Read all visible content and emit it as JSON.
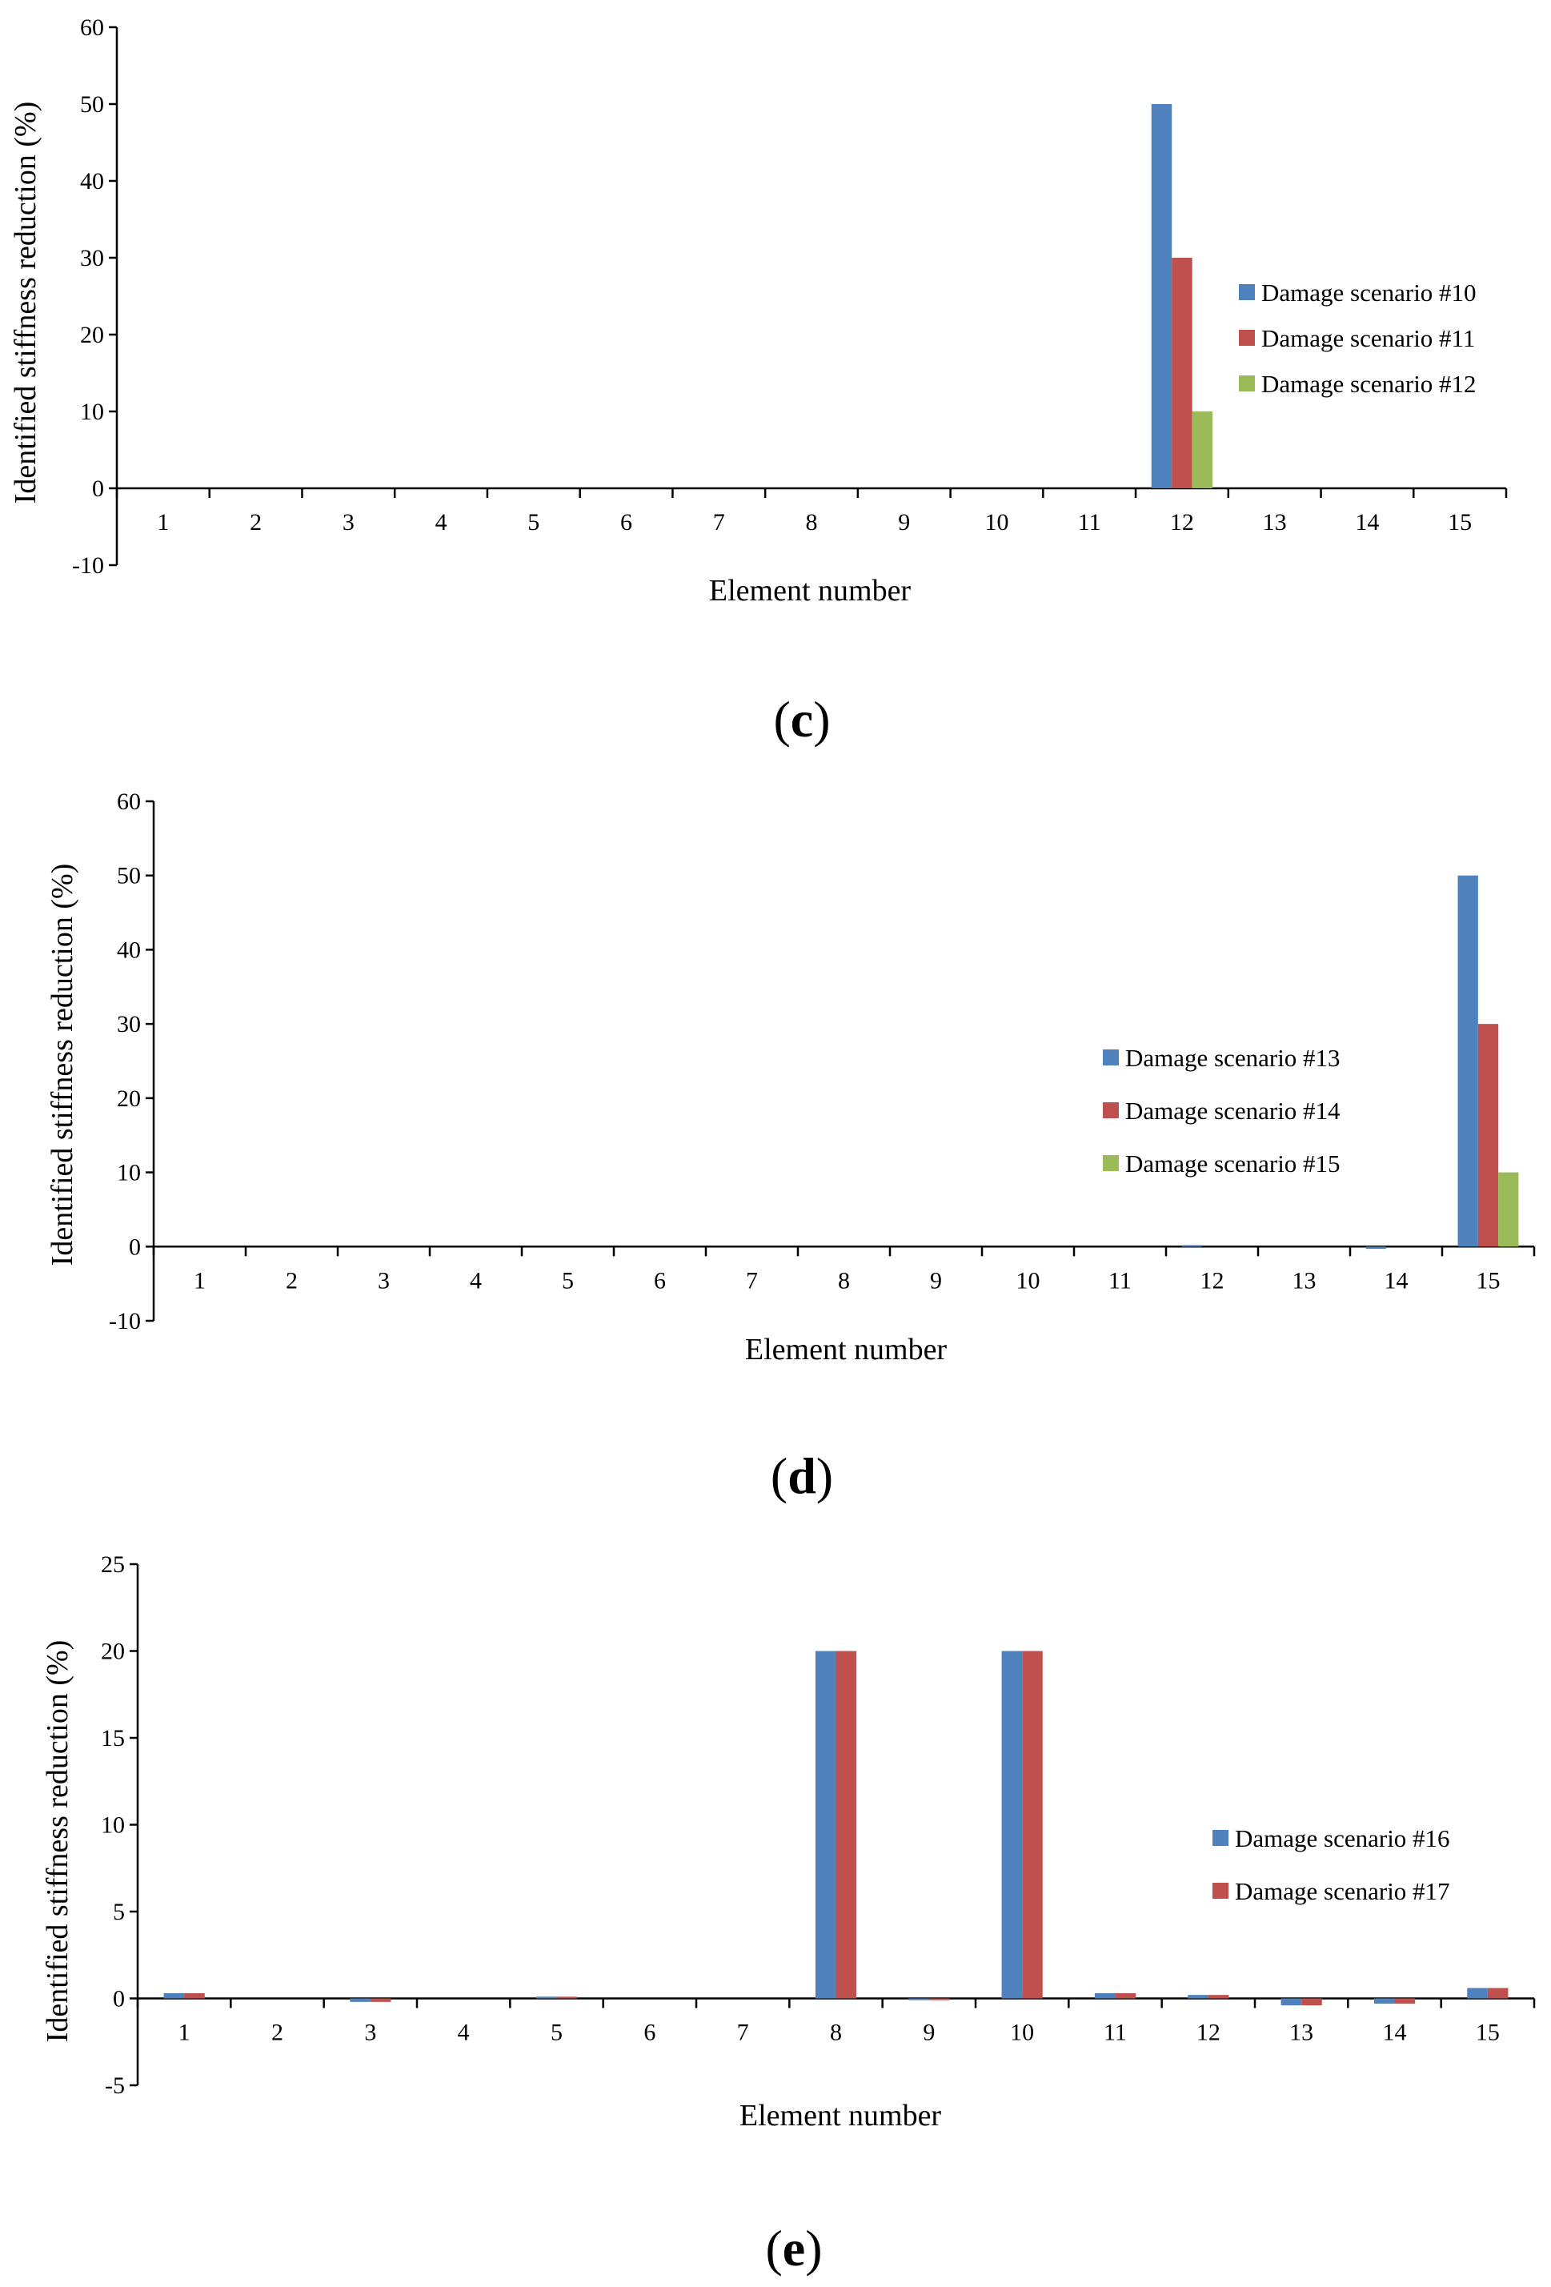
{
  "series_colors": [
    "#4F81BD",
    "#C0504D",
    "#9BBB59"
  ],
  "chart_data": [
    {
      "type": "bar",
      "caption": {
        "open": "(",
        "letter": "c",
        "close": ")"
      },
      "xlabel": "Element number",
      "ylabel": "Identified stiffness reduction (%)",
      "ylim": [
        -10,
        60
      ],
      "yticks": [
        60,
        50,
        40,
        30,
        20,
        10,
        0,
        -10
      ],
      "categories": [
        "1",
        "2",
        "3",
        "4",
        "5",
        "6",
        "7",
        "8",
        "9",
        "10",
        "11",
        "12",
        "13",
        "14",
        "15"
      ],
      "legend_position": "right",
      "series": [
        {
          "name": "Damage scenario #10",
          "values": [
            0,
            0,
            0,
            0,
            0,
            0,
            0,
            0,
            0,
            0,
            0,
            50,
            0,
            0,
            0
          ]
        },
        {
          "name": "Damage scenario #11",
          "values": [
            0,
            0,
            0,
            0,
            0,
            0,
            0,
            0,
            0,
            0,
            0,
            30,
            0,
            0,
            0
          ]
        },
        {
          "name": "Damage scenario #12",
          "values": [
            0,
            0,
            0,
            0,
            0,
            0,
            0,
            0,
            0,
            0,
            0,
            10,
            0,
            0,
            0
          ]
        }
      ]
    },
    {
      "type": "bar",
      "caption": {
        "open": "(",
        "letter": "d",
        "close": ")"
      },
      "xlabel": "Element number",
      "ylabel": "Identified stiffness reduction (%)",
      "ylim": [
        -10,
        60
      ],
      "yticks": [
        60,
        50,
        40,
        30,
        20,
        10,
        0,
        -10
      ],
      "categories": [
        "1",
        "2",
        "3",
        "4",
        "5",
        "6",
        "7",
        "8",
        "9",
        "10",
        "11",
        "12",
        "13",
        "14",
        "15"
      ],
      "legend_position": "right",
      "series": [
        {
          "name": "Damage scenario #13",
          "values": [
            0,
            0,
            0,
            0,
            0,
            0,
            0,
            0,
            0,
            0,
            0,
            0.2,
            0,
            -0.3,
            50
          ]
        },
        {
          "name": "Damage scenario #14",
          "values": [
            0,
            0,
            0,
            0,
            0,
            0,
            0,
            0,
            0,
            0,
            0,
            0,
            0,
            0,
            30
          ]
        },
        {
          "name": "Damage scenario #15",
          "values": [
            0,
            0,
            0,
            0,
            0,
            0,
            0,
            0,
            0,
            0,
            0,
            0,
            0,
            0,
            10
          ]
        }
      ]
    },
    {
      "type": "bar",
      "caption": {
        "open": "(",
        "letter": "e",
        "close": ")"
      },
      "xlabel": "Element number",
      "ylabel": "Identified stiffness reduction (%)",
      "ylim": [
        -5,
        25
      ],
      "yticks": [
        25,
        20,
        15,
        10,
        5,
        0,
        -5
      ],
      "categories": [
        "1",
        "2",
        "3",
        "4",
        "5",
        "6",
        "7",
        "8",
        "9",
        "10",
        "11",
        "12",
        "13",
        "14",
        "15"
      ],
      "legend_position": "right",
      "series": [
        {
          "name": "Damage scenario #16",
          "values": [
            0.3,
            0,
            -0.2,
            0,
            0.1,
            0,
            0,
            20,
            -0.1,
            20,
            0.3,
            0.2,
            -0.4,
            -0.3,
            0.6
          ]
        },
        {
          "name": "Damage scenario #17",
          "values": [
            0.3,
            0,
            -0.2,
            0,
            0.1,
            0,
            0,
            20,
            -0.1,
            20,
            0.3,
            0.2,
            -0.4,
            -0.3,
            0.6
          ]
        }
      ]
    }
  ]
}
